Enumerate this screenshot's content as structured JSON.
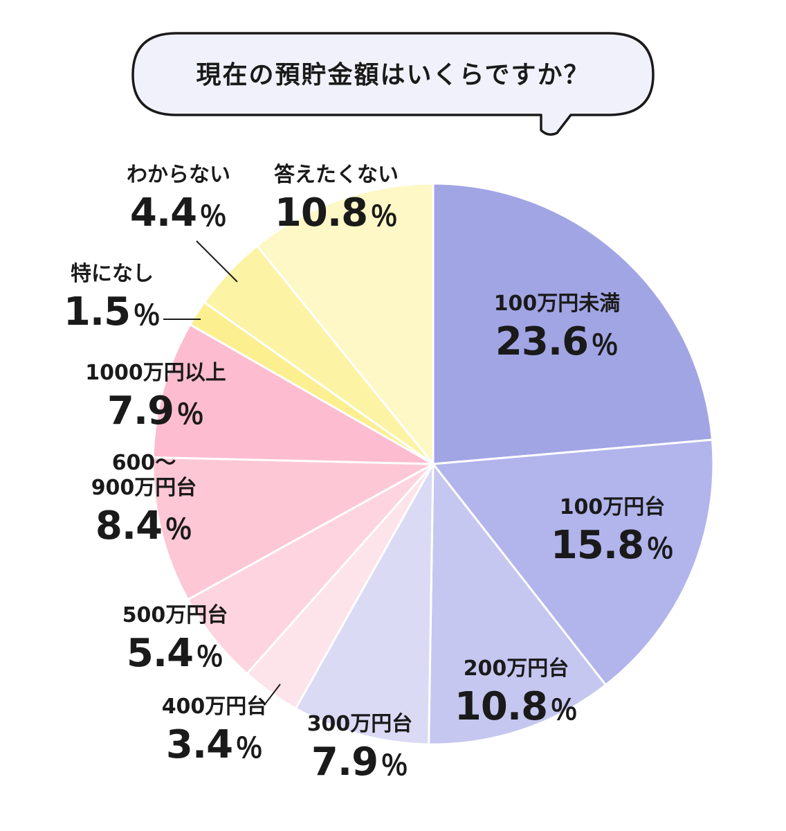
{
  "title": "現在の預貯金額はいくらですか？",
  "chart_data": {
    "type": "pie",
    "unit": "％",
    "slices": [
      {
        "label": "100万円未満",
        "value": 23.6,
        "display": "23.6",
        "color": "#a1a5e4"
      },
      {
        "label": "100万円台",
        "value": 15.8,
        "display": "15.8",
        "color": "#b2b4ec"
      },
      {
        "label": "200万円台",
        "value": 10.8,
        "display": "10.8",
        "color": "#c5c7f0"
      },
      {
        "label": "300万円台",
        "value": 7.9,
        "display": "7.9",
        "color": "#dadaf5"
      },
      {
        "label": "400万円台",
        "value": 3.4,
        "display": "3.4",
        "color": "#fde3ea"
      },
      {
        "label": "500万円台",
        "value": 5.4,
        "display": "5.4",
        "color": "#fdd4df"
      },
      {
        "label": "600～\n900万円台",
        "value": 8.4,
        "display": "8.4",
        "color": "#fdc7d6"
      },
      {
        "label": "1000万円以上",
        "value": 7.9,
        "display": "7.9",
        "color": "#febcd0"
      },
      {
        "label": "特になし",
        "value": 1.5,
        "display": "1.5",
        "color": "#fcef8f"
      },
      {
        "label": "わからない",
        "value": 4.4,
        "display": "4.4",
        "color": "#fdf3a5"
      },
      {
        "label": "答えたくない",
        "value": 10.8,
        "display": "10.8",
        "color": "#fef8c6"
      }
    ]
  }
}
